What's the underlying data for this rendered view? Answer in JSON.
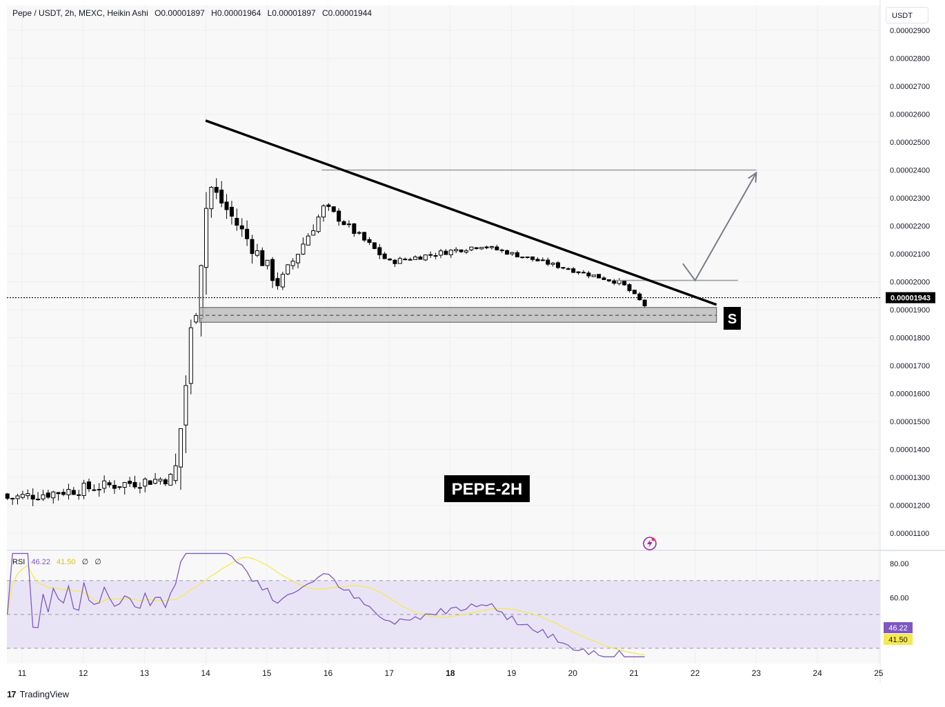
{
  "header": {
    "symbol": "Pepe / USDT, 2h, MEXC, Heikin Ashi",
    "open": "O0.00001897",
    "high": "H0.00001964",
    "low": "L0.00001897",
    "close": "C0.00001944"
  },
  "currency_button": "USDT",
  "watermark_label": "PEPE-2H",
  "support_label": "S",
  "current_price_label": "0.00001943",
  "rsi": {
    "label": "RSI",
    "value": "46.22",
    "ma_value": "41.50",
    "empty1": "∅",
    "empty2": "∅",
    "axis_ticks": [
      "80.00",
      "60.00"
    ],
    "upper_band": 70,
    "mid_band": 50,
    "lower_band": 30
  },
  "footer": {
    "logo": "17",
    "brand": "TradingView"
  },
  "colors": {
    "candle": "#000000",
    "trendline": "#000000",
    "support_zone": "#b2b2b2",
    "target_line": "#9598a1",
    "rsi_line": "#7e57c2",
    "rsi_ma": "#f5e94f",
    "rsi_band": "#e9e4f5",
    "last_price_bg": "#000000",
    "rsi_value_bg": "#7e57c2",
    "rsi_ma_bg": "#f5e94f"
  },
  "chart_data": {
    "type": "candlestick",
    "title": "Pepe / USDT, 2h, MEXC, Heikin Ashi",
    "y_ticks": [
      "0.00002900",
      "0.00002800",
      "0.00002700",
      "0.00002600",
      "0.00002500",
      "0.00002400",
      "0.00002300",
      "0.00002200",
      "0.00002100",
      "0.00002000",
      "0.00001900",
      "0.00001800",
      "0.00001700",
      "0.00001600",
      "0.00001500",
      "0.00001400",
      "0.00001300",
      "0.00001200",
      "0.00001100"
    ],
    "x_ticks": [
      "11",
      "12",
      "13",
      "14",
      "15",
      "16",
      "17",
      "18",
      "19",
      "20",
      "21",
      "22",
      "23",
      "24",
      "25"
    ],
    "ylim": [
      1.03e-05,
      2.95e-05
    ],
    "x_range_days": [
      10.76,
      25.1
    ],
    "last_price": 1.943e-05,
    "trendline": {
      "from": [
        14.0,
        2.577e-05
      ],
      "to": [
        22.35,
        1.918e-05
      ]
    },
    "support_zone": {
      "x_from": 13.9,
      "x_to": 22.35,
      "y_from": 1.855e-05,
      "y_to": 1.908e-05,
      "mid": 1.88e-05
    },
    "target_level": {
      "x_from": 15.9,
      "x_to": 23.0,
      "y": 2.4e-05
    },
    "breakout_level": {
      "x_from": 20.7,
      "x_to": 22.7,
      "y": 2.005e-05
    },
    "projection_path": [
      [
        21.8,
        2.065e-05
      ],
      [
        22.0,
        2.005e-05
      ],
      [
        23.0,
        2.39e-05
      ]
    ],
    "candles_hint": "Heikin Ashi 2h candles; OHLC estimated from chart",
    "candles": []
  }
}
